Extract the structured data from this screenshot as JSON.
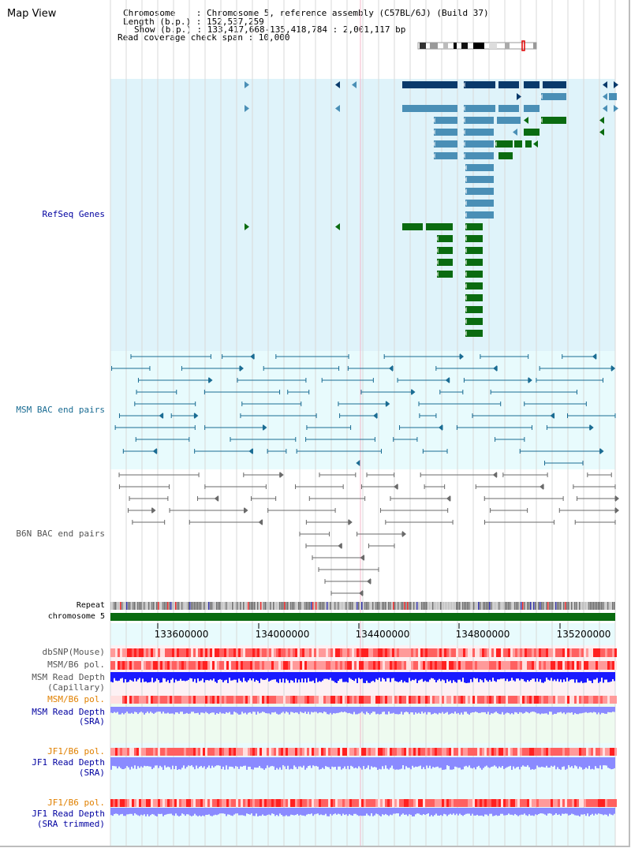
{
  "page_title": "Map View",
  "header": {
    "chromosome_label": "Chromosome    : Chromosome 5, reference assembly (C57BL/6J) (Build 37)",
    "length_label": "Length (b.p.) : 152,537,259",
    "show_label": "Show (b.p.) : 133,417,668-135,418,784 : 2,001,117 bp",
    "coverage_label": "Read coverage check span : 10,000"
  },
  "tracks": {
    "refseq": "RefSeq Genes",
    "msm_bac": "MSM BAC end pairs",
    "b6n_bac": "B6N BAC end pairs",
    "repeat": "Repeat",
    "chromosome": "chromosome 5",
    "dbsnp": "dbSNP(Mouse)",
    "msm_pol_1": "MSM/B6 pol.",
    "msm_depth_cap_1": "MSM Read Depth",
    "msm_depth_cap_2": "(Capillary)",
    "msm_pol_2": "MSM/B6 pol.",
    "msm_depth_sra_1": "MSM Read Depth",
    "msm_depth_sra_2": "(SRA)",
    "jf1_pol_1": "JF1/B6 pol.",
    "jf1_depth_sra_1": "JF1 Read Depth",
    "jf1_depth_sra_2": "(SRA)",
    "jf1_pol_2": "JF1/B6 pol.",
    "jf1_depth_trim_1": "JF1 Read Depth",
    "jf1_depth_trim_2": "(SRA trimmed)"
  },
  "axis": {
    "ticks": [
      "133600000",
      "134000000",
      "134400000",
      "134800000",
      "135200000"
    ]
  },
  "colors": {
    "refseq_bg": "#dff3fa",
    "msm_bg": "#e8fbfd",
    "gene_dark": "#0a3a6b",
    "gene_mid": "#4a8fb6",
    "gene_green": "#0a6b10",
    "msm_pair": "#1a6c93",
    "b6n_pair": "#6a6a6a",
    "chromosome": "#0a6b10",
    "depth": "#1a1aff",
    "depth_light": "#8a8aff",
    "pol_red": "#ff3030"
  }
}
